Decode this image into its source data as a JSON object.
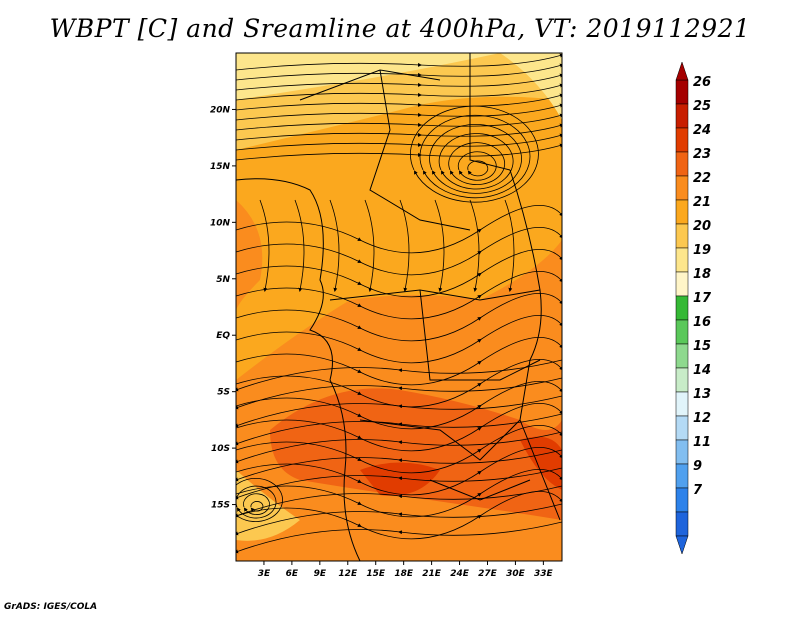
{
  "title": "WBPT [C] and Sreamline at 400hPa, VT: 2019112921",
  "credit": "GrADS: IGES/COLA",
  "map": {
    "lon_range": [
      0,
      35
    ],
    "lat_range": [
      -20,
      25
    ],
    "lon_ticks": [
      "3E",
      "6E",
      "9E",
      "12E",
      "15E",
      "18E",
      "21E",
      "24E",
      "27E",
      "30E",
      "33E"
    ],
    "lat_ticks": [
      "20N",
      "15N",
      "10N",
      "5N",
      "EQ",
      "5S",
      "10S",
      "15S"
    ],
    "colorbar_labels": [
      "26",
      "25",
      "24",
      "23",
      "22",
      "21",
      "20",
      "19",
      "18",
      "17",
      "16",
      "15",
      "14",
      "13",
      "12",
      "11",
      "9",
      "7"
    ],
    "colorbar_colors": [
      "#a50000",
      "#c81e00",
      "#e13c00",
      "#f06414",
      "#fa8c1e",
      "#fba81e",
      "#fcc850",
      "#fde68c",
      "#fff5c8",
      "#35b935",
      "#5ac85a",
      "#8ed98e",
      "#c8ecc8",
      "#e1f4fa",
      "#b4daf5",
      "#82bef0",
      "#50a0ee",
      "#2d82ea",
      "#1e64dc"
    ]
  }
}
